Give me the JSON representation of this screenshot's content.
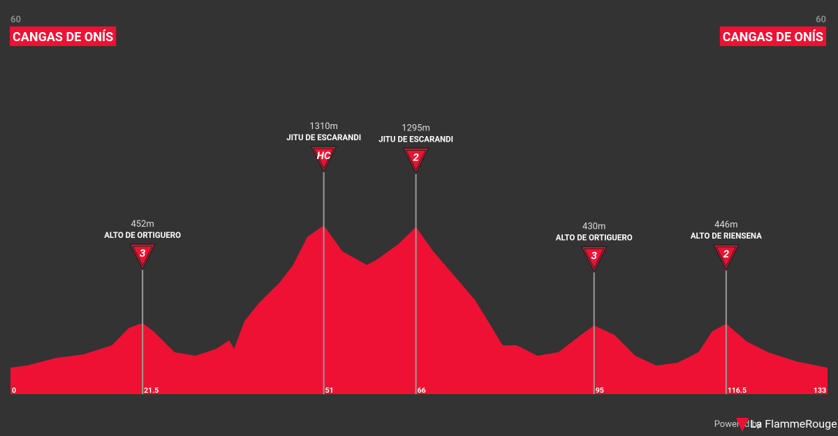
{
  "chart_data": {
    "type": "area",
    "color": "#ee1133",
    "start": {
      "altitude": 60,
      "name": "CANGAS DE ONÍS"
    },
    "finish": {
      "altitude": 60,
      "name": "CANGAS DE ONÍS"
    },
    "x": [
      0,
      2.8,
      7.4,
      11.9,
      16.5,
      19.3,
      21.5,
      23.3,
      26.7,
      30.1,
      33.5,
      35.6,
      36.4,
      38.1,
      40.4,
      43.8,
      46.0,
      48.3,
      51,
      54,
      58,
      59.7,
      63.1,
      66,
      68.8,
      72.2,
      75.6,
      78.4,
      80.1,
      82.4,
      85.8,
      89.2,
      92.6,
      95,
      98.3,
      101.7,
      105.1,
      108.6,
      112,
      114.2,
      116.5,
      119.9,
      123.3,
      127.9,
      133
    ],
    "values": [
      60,
      80,
      145,
      176,
      256,
      409,
      452,
      378,
      195,
      164,
      225,
      299,
      225,
      470,
      624,
      807,
      961,
      1206,
      1310,
      1083,
      961,
      1010,
      1144,
      1295,
      1083,
      869,
      654,
      409,
      256,
      256,
      164,
      195,
      336,
      430,
      348,
      164,
      78,
      103,
      195,
      378,
      446,
      287,
      195,
      115,
      60
    ],
    "xlim": [
      0,
      133
    ],
    "ylim": [
      -173,
      3289
    ],
    "xticks": [
      0,
      21.5,
      51,
      66,
      95,
      116.5,
      133
    ],
    "climbs": [
      {
        "km": 21.5,
        "altitude": 452,
        "altitude_label": "452m",
        "name": "ALTO DE ORTIGUERO",
        "category": "3"
      },
      {
        "km": 51,
        "altitude": 1310,
        "altitude_label": "1310m",
        "name": "JITU DE ESCARANDI",
        "category": "HC"
      },
      {
        "km": 66,
        "altitude": 1295,
        "altitude_label": "1295m",
        "name": "JITU DE ESCARANDI",
        "category": "2"
      },
      {
        "km": 95,
        "altitude": 430,
        "altitude_label": "430m",
        "name": "ALTO DE ORTIGUERO",
        "category": "3"
      },
      {
        "km": 116.5,
        "altitude": 446,
        "altitude_label": "446m",
        "name": "ALTO DE RIENSENA",
        "category": "2"
      }
    ]
  },
  "footer": {
    "powered": "Powered by",
    "brand": "La FlammeRouge"
  }
}
